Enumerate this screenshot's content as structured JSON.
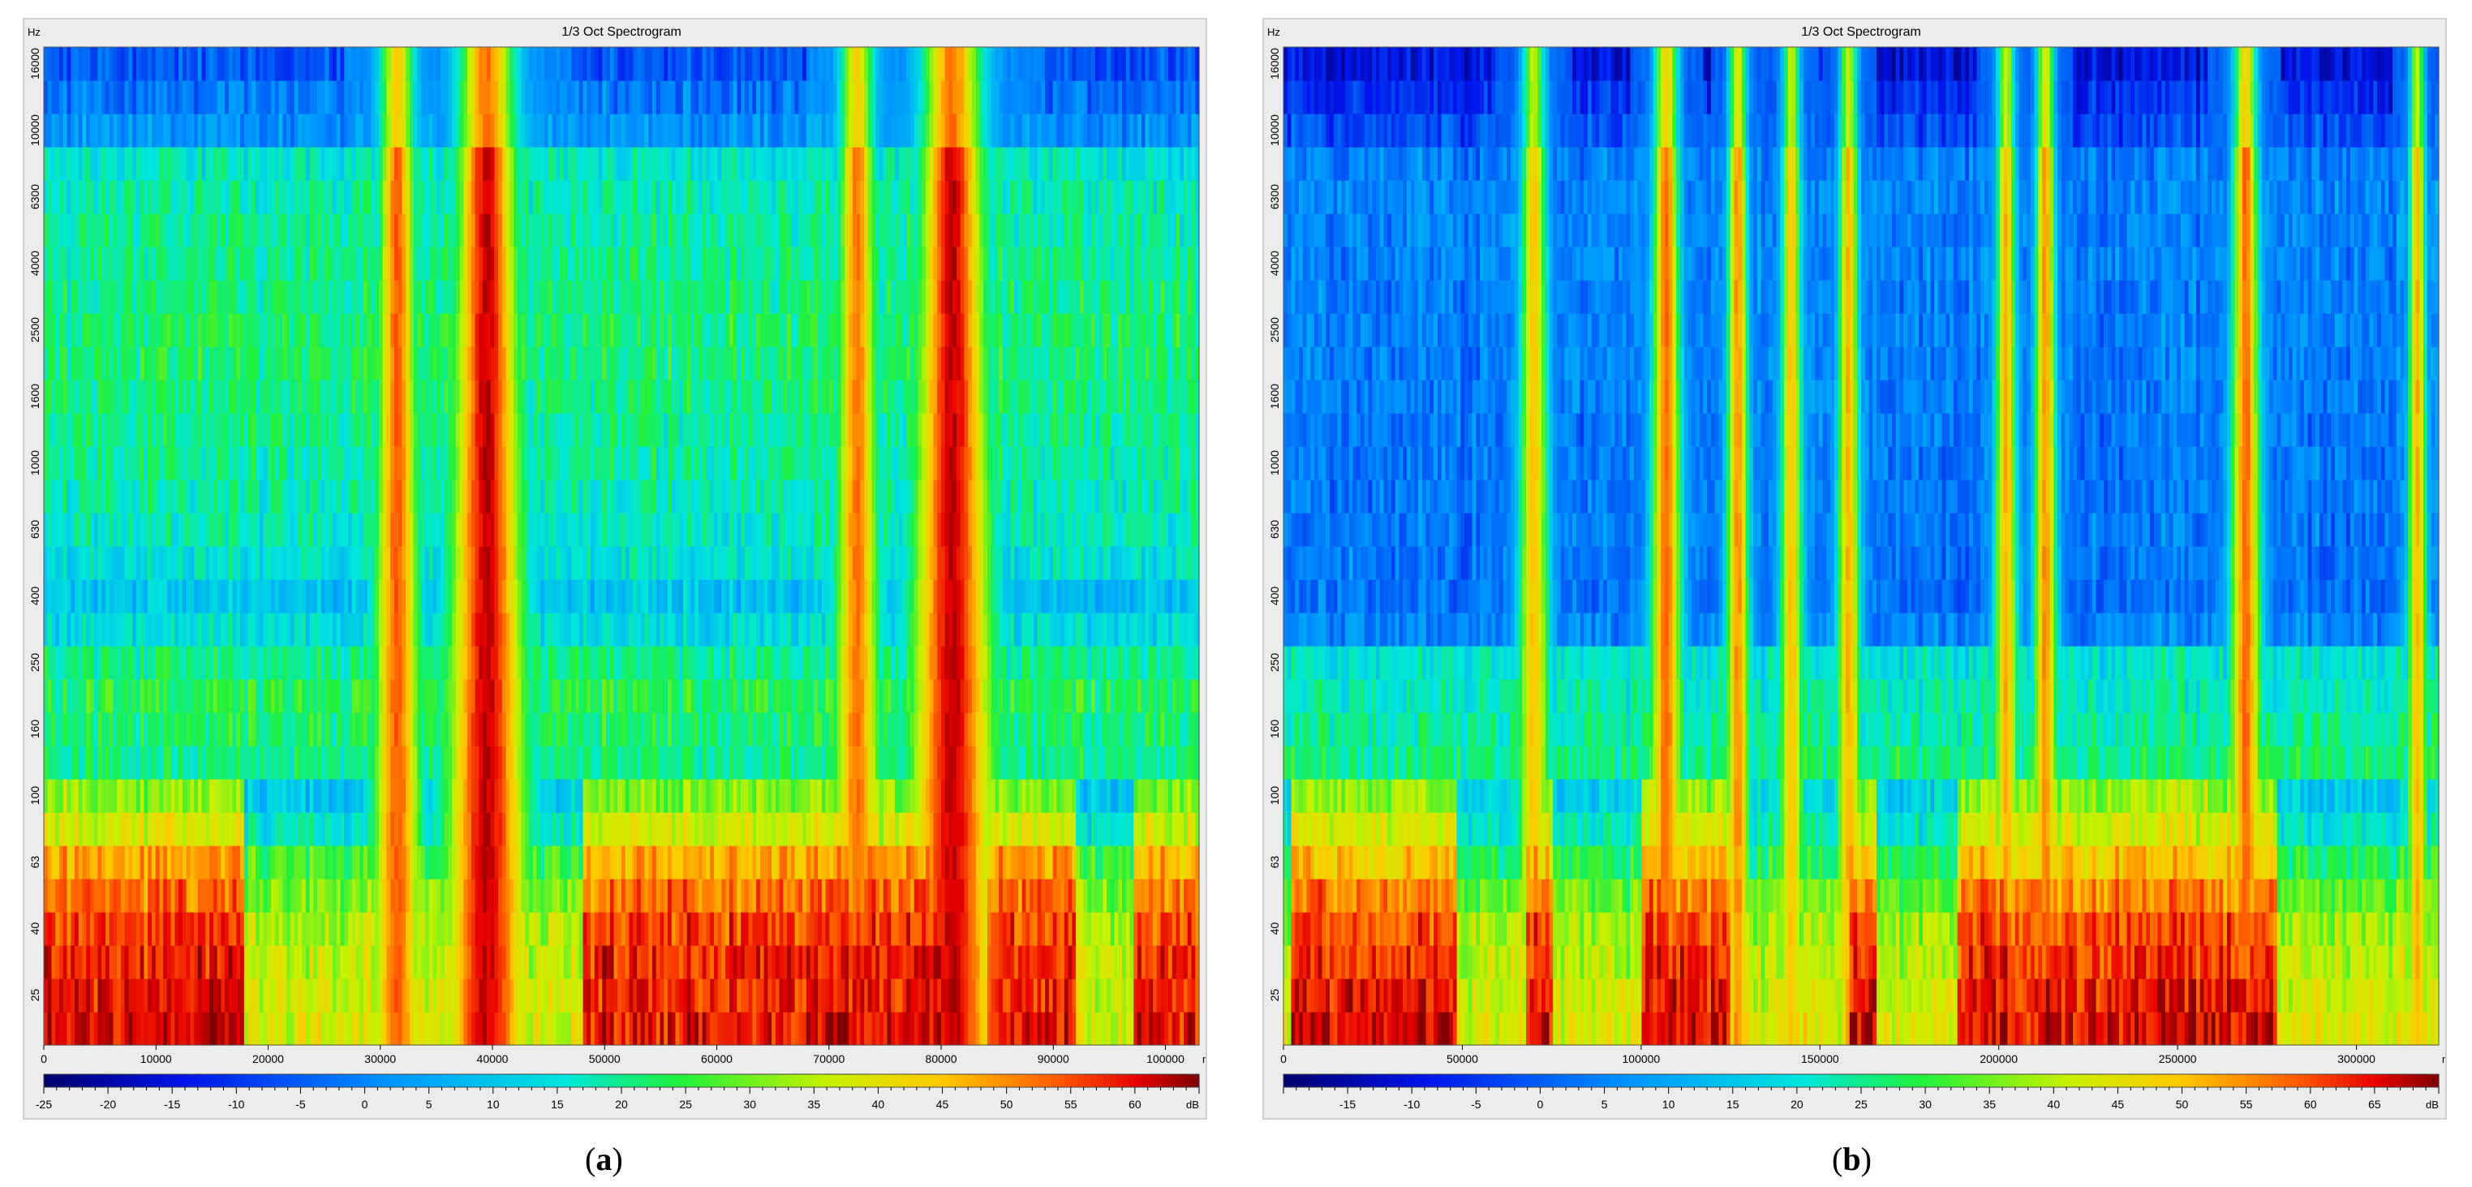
{
  "captions": [
    {
      "prefix": "(",
      "letter": "a",
      "suffix": ")"
    },
    {
      "prefix": "(",
      "letter": "b",
      "suffix": ")"
    }
  ],
  "chart_data": [
    {
      "type": "heatmap",
      "title": "1/3 Oct Spectrogram",
      "ylabel": "Hz",
      "xlabel": "ms",
      "colorbar_label": "dB",
      "y_ticks": [
        "25",
        "40",
        "63",
        "100",
        "160",
        "250",
        "400",
        "630",
        "1000",
        "1600",
        "2500",
        "4000",
        "6300",
        "10000",
        "16000"
      ],
      "x_ticks": [
        0,
        10000,
        20000,
        30000,
        40000,
        50000,
        60000,
        70000,
        80000,
        90000,
        100000
      ],
      "xlim": [
        0,
        103000
      ],
      "colorbar_ticks": [
        -25,
        -20,
        -15,
        -10,
        -5,
        0,
        5,
        10,
        15,
        20,
        25,
        30,
        35,
        40,
        45,
        50,
        55,
        60
      ],
      "colorbar_range": [
        -25,
        65
      ],
      "bands_low_to_high": [
        "20",
        "25",
        "31.5",
        "40",
        "50",
        "63",
        "80",
        "100",
        "125",
        "160",
        "200",
        "250",
        "315",
        "400",
        "500",
        "630",
        "800",
        "1000",
        "1250",
        "1600",
        "2000",
        "2500",
        "3150",
        "4000",
        "5000",
        "6300",
        "8000",
        "10000",
        "12500",
        "16000"
      ],
      "base_level_db_by_band": [
        52,
        51,
        50,
        48,
        45,
        40,
        30,
        24,
        20,
        22,
        24,
        20,
        14,
        10,
        15,
        17,
        18,
        19,
        20,
        21,
        22,
        22,
        21,
        20,
        19,
        18,
        16,
        2,
        -2,
        -6
      ],
      "low_freq_loud_segments_ms": [
        [
          0,
          18000
        ],
        [
          48000,
          80000
        ],
        [
          84000,
          92000
        ],
        [
          97000,
          103000
        ]
      ],
      "events": [
        {
          "center_ms": 31500,
          "width_ms": 1800,
          "peak_db": 54
        },
        {
          "center_ms": 39500,
          "width_ms": 3000,
          "peak_db": 62
        },
        {
          "center_ms": 72500,
          "width_ms": 1800,
          "peak_db": 52
        },
        {
          "center_ms": 81000,
          "width_ms": 3200,
          "peak_db": 62
        }
      ]
    },
    {
      "type": "heatmap",
      "title": "1/3 Oct Spectrogram",
      "ylabel": "Hz",
      "xlabel": "ms",
      "colorbar_label": "dB",
      "y_ticks": [
        "25",
        "40",
        "63",
        "100",
        "160",
        "250",
        "400",
        "630",
        "1000",
        "1600",
        "2500",
        "4000",
        "6300",
        "10000",
        "16000"
      ],
      "x_ticks": [
        0,
        50000,
        100000,
        150000,
        200000,
        250000,
        300000
      ],
      "xlim": [
        0,
        323000
      ],
      "colorbar_ticks": [
        -15,
        -10,
        -5,
        0,
        5,
        10,
        15,
        20,
        25,
        30,
        35,
        40,
        45,
        50,
        55,
        60,
        65
      ],
      "colorbar_range": [
        -20,
        70
      ],
      "bands_low_to_high": [
        "20",
        "25",
        "31.5",
        "40",
        "50",
        "63",
        "80",
        "100",
        "125",
        "160",
        "200",
        "250",
        "315",
        "400",
        "500",
        "630",
        "800",
        "1000",
        "1250",
        "1600",
        "2000",
        "2500",
        "3150",
        "4000",
        "5000",
        "6300",
        "8000",
        "10000",
        "12500",
        "16000"
      ],
      "base_level_db_by_band": [
        58,
        56,
        54,
        52,
        48,
        42,
        35,
        30,
        26,
        24,
        22,
        20,
        5,
        2,
        3,
        3,
        3,
        3,
        3,
        4,
        4,
        4,
        4,
        5,
        5,
        5,
        4,
        -2,
        -6,
        -10
      ],
      "low_freq_loud_segments_ms": [
        [
          2000,
          48000
        ],
        [
          68000,
          75000
        ],
        [
          100000,
          125000
        ],
        [
          158000,
          166000
        ],
        [
          188000,
          278000
        ]
      ],
      "events": [
        {
          "center_ms": 70000,
          "width_ms": 4000,
          "peak_db": 50
        },
        {
          "center_ms": 107000,
          "width_ms": 4000,
          "peak_db": 58
        },
        {
          "center_ms": 127000,
          "width_ms": 3000,
          "peak_db": 55
        },
        {
          "center_ms": 142000,
          "width_ms": 3000,
          "peak_db": 50
        },
        {
          "center_ms": 158000,
          "width_ms": 3000,
          "peak_db": 52
        },
        {
          "center_ms": 202000,
          "width_ms": 3000,
          "peak_db": 52
        },
        {
          "center_ms": 213000,
          "width_ms": 3000,
          "peak_db": 55
        },
        {
          "center_ms": 269000,
          "width_ms": 4000,
          "peak_db": 58
        },
        {
          "center_ms": 317000,
          "width_ms": 2500,
          "peak_db": 52
        }
      ]
    }
  ]
}
